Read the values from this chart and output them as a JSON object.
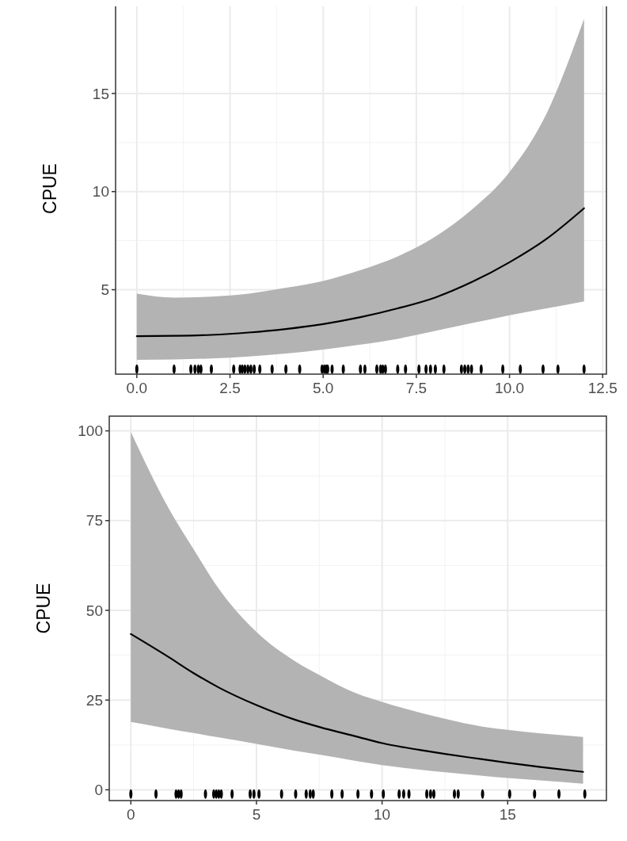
{
  "chart_data": [
    {
      "type": "line",
      "ylabel": "CPUE",
      "xlim": [
        -0.57,
        12.6
      ],
      "ylim": [
        0.7,
        19.6
      ],
      "xticks": [
        {
          "value": 0,
          "label": "0.0"
        },
        {
          "value": 2.5,
          "label": "2.5"
        },
        {
          "value": 5,
          "label": "5.0"
        },
        {
          "value": 7.5,
          "label": "7.5"
        },
        {
          "value": 10,
          "label": "10.0"
        },
        {
          "value": 12.5,
          "label": "12.5"
        }
      ],
      "yticks": [
        5,
        10,
        15
      ],
      "grid": true,
      "series": [
        {
          "color": "#000000",
          "x": [
            0,
            1,
            2,
            3,
            4,
            5,
            6,
            7,
            8,
            9,
            10,
            11,
            12
          ],
          "values": [
            2.63,
            2.65,
            2.7,
            2.82,
            3.0,
            3.25,
            3.6,
            4.05,
            4.6,
            5.4,
            6.4,
            7.6,
            9.15
          ],
          "lower": [
            1.43,
            1.45,
            1.5,
            1.6,
            1.75,
            1.95,
            2.2,
            2.5,
            2.9,
            3.3,
            3.7,
            4.05,
            4.41
          ],
          "upper": [
            4.8,
            4.6,
            4.65,
            4.8,
            5.1,
            5.45,
            6.0,
            6.7,
            7.7,
            9.1,
            11.0,
            14.0,
            18.8
          ]
        },
        {
          "type": "scatter",
          "color": "#000000",
          "x": [
            0,
            1.0,
            1.45,
            1.56,
            1.65,
            1.72,
            2.0,
            2.6,
            2.77,
            2.83,
            2.9,
            2.98,
            3.06,
            3.15,
            3.3,
            3.63,
            4.0,
            4.37,
            4.97,
            5.03,
            5.08,
            5.12,
            5.24,
            5.54,
            6.0,
            6.12,
            6.44,
            6.54,
            6.6,
            6.67,
            7.0,
            7.21,
            7.57,
            7.76,
            7.88,
            8.01,
            8.24,
            8.71,
            8.8,
            8.89,
            8.98,
            9.24,
            9.82,
            10.29,
            10.9,
            11.3,
            12.0
          ],
          "values": [
            0.95,
            0.95,
            0.95,
            0.95,
            0.95,
            0.95,
            0.95,
            0.95,
            0.95,
            0.95,
            0.95,
            0.95,
            0.95,
            0.95,
            0.95,
            0.95,
            0.95,
            0.95,
            0.95,
            0.95,
            0.95,
            0.95,
            0.95,
            0.95,
            0.95,
            0.95,
            0.95,
            0.95,
            0.95,
            0.95,
            0.95,
            0.95,
            0.95,
            0.95,
            0.95,
            0.95,
            0.95,
            0.95,
            0.95,
            0.95,
            0.95,
            0.95,
            0.95,
            0.95,
            0.95,
            0.95,
            0.95
          ]
        }
      ]
    },
    {
      "type": "line",
      "ylabel": "CPUE",
      "xlim": [
        -0.86,
        18.93
      ],
      "ylim": [
        -3,
        104.1
      ],
      "xticks": [
        0,
        5,
        10,
        15
      ],
      "yticks": [
        0,
        25,
        50,
        75,
        100
      ],
      "grid": true,
      "series": [
        {
          "color": "#000000",
          "x": [
            0,
            1.5,
            2.5,
            3.5,
            5,
            6.5,
            7.5,
            9,
            10,
            11.5,
            12.5,
            14,
            15,
            16.5,
            18
          ],
          "values": [
            43.4,
            37,
            32.5,
            28.5,
            23.6,
            19.6,
            17.5,
            14.8,
            13.0,
            11.1,
            10.0,
            8.5,
            7.5,
            6.2,
            5.0
          ],
          "lower": [
            18.9,
            17.0,
            15.8,
            14.6,
            12.8,
            10.9,
            9.8,
            8.0,
            6.9,
            5.6,
            4.9,
            3.9,
            3.3,
            2.5,
            1.7
          ],
          "upper": [
            99.7,
            78.5,
            67,
            56,
            44,
            36,
            32,
            26.8,
            24.5,
            21.5,
            19.8,
            17.6,
            16.7,
            15.6,
            14.7
          ]
        },
        {
          "type": "scatter",
          "color": "#000000",
          "x": [
            0,
            1.0,
            1.8,
            1.9,
            2.0,
            2.97,
            3.3,
            3.4,
            3.5,
            3.6,
            4.03,
            4.75,
            4.9,
            5.1,
            6.0,
            6.56,
            6.98,
            7.14,
            7.26,
            8.0,
            8.41,
            9.04,
            9.58,
            10.05,
            10.68,
            10.86,
            11.07,
            11.78,
            11.93,
            12.06,
            12.88,
            13.03,
            14.0,
            15.08,
            16.07,
            17.04,
            18.07
          ],
          "values": [
            -1.2,
            -1.2,
            -1.2,
            -1.2,
            -1.2,
            -1.2,
            -1.2,
            -1.2,
            -1.2,
            -1.2,
            -1.2,
            -1.2,
            -1.2,
            -1.2,
            -1.2,
            -1.2,
            -1.2,
            -1.2,
            -1.2,
            -1.2,
            -1.2,
            -1.2,
            -1.2,
            -1.2,
            -1.2,
            -1.2,
            -1.2,
            -1.2,
            -1.2,
            -1.2,
            -1.2,
            -1.2,
            -1.2,
            -1.2,
            -1.2,
            -1.2,
            -1.2
          ]
        }
      ]
    }
  ]
}
